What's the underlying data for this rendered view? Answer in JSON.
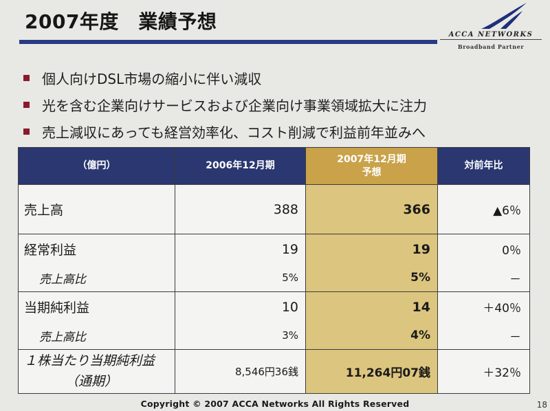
{
  "header": {
    "title": "2007年度　業績予想",
    "logo_name": "ACCA NETWORKS",
    "logo_sub": "Broadband Partner",
    "accent_color": "#283a85"
  },
  "bullets": [
    "個人向けDSL市場の縮小に伴い減収",
    "光を含む企業向けサービスおよび企業向け事業領域拡大に注力",
    "売上減収にあっても経営効率化、コスト削減で利益前年並みへ"
  ],
  "table": {
    "headers": {
      "unit": "（億円）",
      "col_2006": "2006年12月期",
      "col_2007_line1": "2007年12月期",
      "col_2007_line2": "予想",
      "yoy": "対前年比"
    },
    "rows": {
      "sales": {
        "label": "売上高",
        "v2006": "388",
        "v2007": "366",
        "yoy": "▲6％"
      },
      "ordinary": {
        "label": "経常利益",
        "v2006": "19",
        "v2007": "19",
        "yoy": "0％"
      },
      "ordinary_ratio": {
        "label": "売上高比",
        "v2006": "5%",
        "v2007": "5%",
        "yoy": "－"
      },
      "net": {
        "label": "当期純利益",
        "v2006": "10",
        "v2007": "14",
        "yoy": "＋40％"
      },
      "net_ratio": {
        "label": "売上高比",
        "v2006": "3%",
        "v2007": "4%",
        "yoy": "－"
      },
      "eps": {
        "label_line1": "１株当たり当期純利益",
        "label_line2": "（通期）",
        "v2006": "8,546円36銭",
        "v2007": "11,264円07銭",
        "yoy": "＋32％"
      }
    },
    "colors": {
      "header_bg": "#2a3770",
      "highlight_header": "#caa24a",
      "highlight_cell": "#dcc57e"
    }
  },
  "footer": {
    "copyright": "Copyright © 2007 ACCA Networks All Rights Reserved",
    "page_number": "18"
  }
}
